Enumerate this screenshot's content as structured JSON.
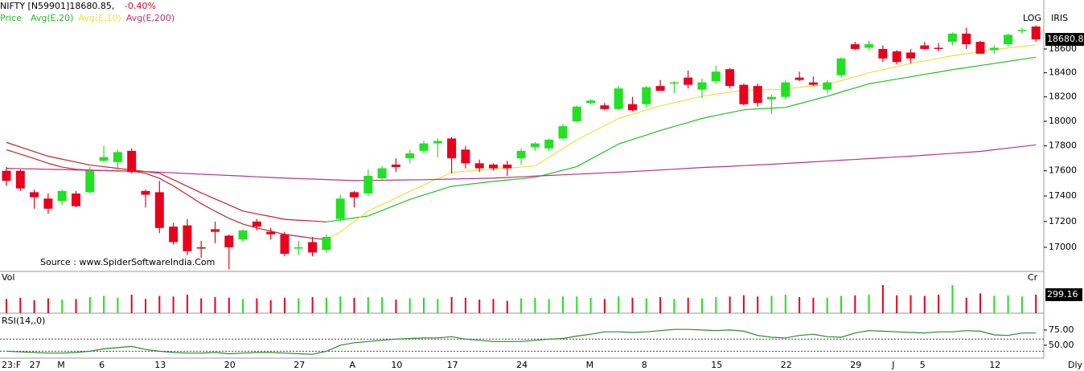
{
  "chart_data": {
    "type": "candlestick",
    "header": {
      "symbol": "NIFTY [N59901]18680.85,",
      "change": "-0.40%"
    },
    "price_label": "Price",
    "scale_label": "LOG",
    "brand": "IRIS",
    "source": "Source : www.SpiderSoftwareIndia.Com",
    "periodicity": "Dly",
    "log_scale": true,
    "up_color": "#22e022",
    "down_color": "#e8001c",
    "categories": [
      "23:F",
      null,
      "27",
      null,
      "M",
      null,
      null,
      "6",
      null,
      null,
      null,
      "13",
      null,
      null,
      null,
      null,
      "20",
      null,
      null,
      null,
      null,
      "27",
      null,
      null,
      null,
      "A",
      null,
      null,
      "10",
      null,
      null,
      null,
      "17",
      null,
      null,
      null,
      null,
      "24",
      null,
      null,
      null,
      null,
      "M",
      null,
      null,
      null,
      "8",
      null,
      null,
      null,
      null,
      "15",
      null,
      null,
      null,
      null,
      "22",
      null,
      null,
      null,
      null,
      "29",
      null,
      null,
      "J",
      null,
      "5",
      null,
      null,
      null,
      null,
      "12",
      null,
      null,
      null
    ],
    "open": [
      17600,
      17600,
      17430,
      17380,
      17360,
      17420,
      17430,
      17680,
      17670,
      17760,
      17440,
      17430,
      17160,
      17170,
      17000,
      17140,
      17090,
      17060,
      17200,
      17120,
      17100,
      16990,
      17040,
      16980,
      17220,
      17430,
      17420,
      17540,
      17650,
      17700,
      17760,
      17820,
      17860,
      17770,
      17660,
      17650,
      17650,
      17700,
      17790,
      17780,
      17860,
      18000,
      18150,
      18130,
      18100,
      18140,
      18140,
      18290,
      18310,
      18360,
      18260,
      18330,
      18430,
      18300,
      18290,
      18180,
      18200,
      18360,
      18320,
      18260,
      18380,
      18640,
      18610,
      18600,
      18580,
      18570,
      18630,
      18610,
      18660,
      18730,
      18660,
      18590,
      18640,
      18750,
      18790
    ],
    "high": [
      17630,
      17610,
      17450,
      17420,
      17450,
      17440,
      17630,
      17800,
      17770,
      17780,
      17450,
      17520,
      17190,
      17220,
      17050,
      17200,
      17100,
      17140,
      17220,
      17150,
      17120,
      17050,
      17080,
      17100,
      17410,
      17440,
      17610,
      17640,
      17700,
      17770,
      17840,
      17860,
      17870,
      17800,
      17690,
      17660,
      17680,
      17780,
      17830,
      17860,
      17980,
      18130,
      18180,
      18150,
      18290,
      18200,
      18290,
      18340,
      18330,
      18420,
      18350,
      18460,
      18440,
      18310,
      18310,
      18220,
      18340,
      18410,
      18370,
      18340,
      18530,
      18660,
      18670,
      18630,
      18590,
      18600,
      18660,
      18650,
      18740,
      18780,
      18670,
      18630,
      18730,
      18780,
      18800
    ],
    "low": [
      17480,
      17440,
      17300,
      17260,
      17330,
      17310,
      17420,
      17670,
      17590,
      17580,
      17310,
      17110,
      17020,
      16940,
      16920,
      17030,
      16830,
      17040,
      17130,
      17060,
      16930,
      16940,
      16930,
      16960,
      17200,
      17310,
      17400,
      17530,
      17590,
      17660,
      17740,
      17710,
      17580,
      17620,
      17590,
      17600,
      17560,
      17650,
      17760,
      17760,
      17850,
      17990,
      18140,
      18090,
      18090,
      18080,
      18110,
      18260,
      18230,
      18270,
      18190,
      18310,
      18270,
      18130,
      18120,
      18060,
      18180,
      18330,
      18290,
      18230,
      18360,
      18590,
      18590,
      18490,
      18470,
      18480,
      18590,
      18580,
      18630,
      18600,
      18560,
      18560,
      18620,
      18730,
      18660
    ],
    "close": [
      17520,
      17460,
      17390,
      17300,
      17440,
      17320,
      17600,
      17710,
      17750,
      17590,
      17410,
      17150,
      17040,
      16970,
      16990,
      17120,
      17000,
      17130,
      17160,
      17100,
      16950,
      17000,
      16960,
      17080,
      17380,
      17390,
      17560,
      17620,
      17630,
      17740,
      17820,
      17840,
      17700,
      17660,
      17620,
      17620,
      17620,
      17760,
      17820,
      17850,
      17960,
      18120,
      18170,
      18100,
      18270,
      18090,
      18280,
      18250,
      18320,
      18300,
      18320,
      18410,
      18290,
      18140,
      18150,
      18200,
      18320,
      18340,
      18300,
      18320,
      18520,
      18600,
      18640,
      18520,
      18490,
      18520,
      18600,
      18600,
      18730,
      18640,
      18560,
      18610,
      18720,
      18760,
      18680.8
    ],
    "averages": [
      {
        "name": "Avg(E,20)",
        "color": "#22c022",
        "down_color": "#c8202c",
        "values": [
          17828,
          17791,
          17754,
          17717,
          17693,
          17670,
          17646,
          17633,
          17620,
          17607,
          17594,
          17581,
          17529,
          17477,
          17425,
          17377,
          17330,
          17282,
          17260,
          17239,
          17217,
          17210,
          17204,
          17197,
          17212,
          17228,
          17243,
          17286,
          17330,
          17373,
          17408,
          17442,
          17477,
          17490,
          17503,
          17516,
          17527,
          17537,
          17548,
          17576,
          17605,
          17633,
          17694,
          17754,
          17815,
          17852,
          17888,
          17925,
          17958,
          17990,
          18023,
          18047,
          18070,
          18094,
          18101,
          18107,
          18114,
          18144,
          18175,
          18205,
          18240,
          18274,
          18309,
          18328,
          18348,
          18367,
          18387,
          18406,
          18426,
          18443,
          18461,
          18478,
          18495,
          18513,
          18530
        ]
      },
      {
        "name": "Avg(E,10)",
        "color": "#f0e040",
        "down_color": "#c8202c",
        "values": [
          17769,
          17734,
          17698,
          17660,
          17630,
          17612,
          17606,
          17602,
          17600,
          17598,
          17580,
          17540,
          17480,
          17410,
          17340,
          17280,
          17225,
          17180,
          17150,
          17125,
          17100,
          17085,
          17070,
          17060,
          17119,
          17200,
          17282,
          17334,
          17385,
          17437,
          17487,
          17537,
          17587,
          17596,
          17604,
          17613,
          17622,
          17630,
          17639,
          17708,
          17778,
          17847,
          17906,
          17964,
          18023,
          18057,
          18092,
          18126,
          18152,
          18179,
          18205,
          18222,
          18239,
          18256,
          18258,
          18260,
          18262,
          18280,
          18290,
          18302,
          18335,
          18367,
          18400,
          18426,
          18452,
          18478,
          18500,
          18521,
          18543,
          18560,
          18578,
          18595,
          18608,
          18621,
          18634
        ]
      },
      {
        "name": "Avg(E,200)",
        "color": "#c0307a",
        "values": [
          17620,
          17617,
          17615,
          17612,
          17610,
          17607,
          17604,
          17602,
          17599,
          17597,
          17594,
          17589,
          17584,
          17578,
          17573,
          17568,
          17563,
          17558,
          17552,
          17547,
          17542,
          17538,
          17534,
          17530,
          17526,
          17522,
          17523,
          17525,
          17526,
          17528,
          17529,
          17532,
          17534,
          17537,
          17539,
          17542,
          17547,
          17552,
          17558,
          17563,
          17568,
          17573,
          17578,
          17584,
          17589,
          17594,
          17600,
          17607,
          17613,
          17620,
          17626,
          17631,
          17636,
          17642,
          17647,
          17652,
          17659,
          17665,
          17672,
          17678,
          17685,
          17691,
          17698,
          17704,
          17711,
          17717,
          17725,
          17733,
          17740,
          17748,
          17756,
          17769,
          17782,
          17795,
          17808
        ]
      }
    ],
    "ylim": [
      16815,
      18914
    ],
    "yticks": [
      17000,
      17200,
      17400,
      17600,
      17800,
      18000,
      18200,
      18400,
      18600
    ],
    "volume": {
      "label": "Vol",
      "unit": "Cr",
      "ylim": [
        0,
        663
      ],
      "values": [
        230,
        250,
        210,
        240,
        220,
        230,
        260,
        280,
        250,
        300,
        230,
        280,
        270,
        300,
        240,
        260,
        250,
        230,
        240,
        210,
        250,
        240,
        260,
        250,
        270,
        250,
        260,
        260,
        220,
        240,
        250,
        230,
        260,
        250,
        220,
        230,
        200,
        240,
        250,
        230,
        270,
        270,
        250,
        230,
        270,
        250,
        240,
        260,
        230,
        250,
        240,
        260,
        270,
        290,
        270,
        280,
        300,
        260,
        250,
        250,
        280,
        290,
        300,
        455,
        290,
        290,
        280,
        300,
        455,
        250,
        320,
        280,
        290,
        270,
        299.16
      ]
    },
    "rsi": {
      "label": "RSI(14,,0)",
      "color": "#2a8a2a",
      "ylim": [
        30,
        100
      ],
      "yticks": [
        {
          "value": 75,
          "label": "75.00"
        },
        {
          "value": 50,
          "label": "50.00"
        }
      ],
      "levels": [
        60,
        40
      ],
      "values": [
        40,
        39,
        38,
        37,
        37,
        38,
        40,
        44,
        46,
        48,
        43,
        40,
        38,
        37,
        37,
        38,
        36,
        37,
        38,
        38,
        37,
        36,
        35,
        40,
        50,
        54,
        56,
        58,
        60,
        61,
        62,
        62,
        64,
        60,
        58,
        56,
        56,
        56,
        58,
        60,
        61,
        65,
        68,
        72,
        72,
        71,
        72,
        74,
        76,
        76,
        75,
        74,
        75,
        73,
        66,
        63,
        62,
        66,
        68,
        64,
        63,
        70,
        74,
        73,
        72,
        71,
        70,
        72,
        72,
        74,
        73,
        67,
        66,
        70,
        70
      ]
    }
  }
}
